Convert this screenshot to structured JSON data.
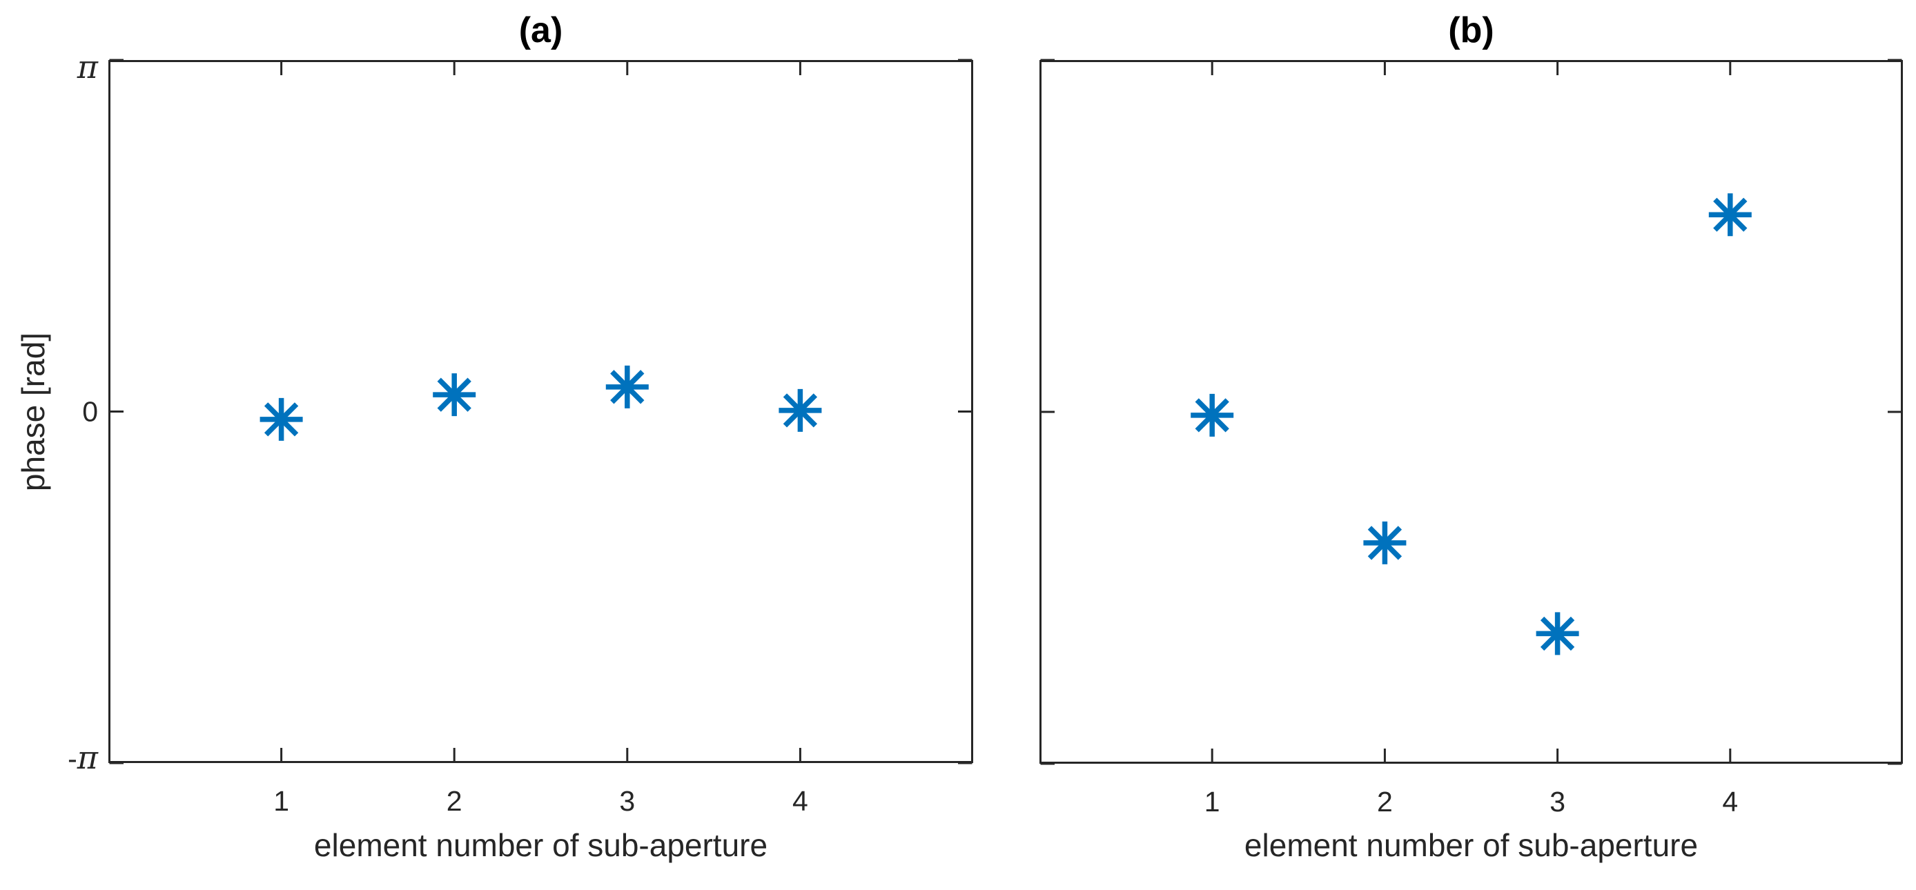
{
  "figure": {
    "background_color": "#ffffff",
    "axis_color": "#262626",
    "title_color": "#000000",
    "marker_color": "#0072BD",
    "marker_glyph": "asterisk"
  },
  "chart_data": [
    {
      "type": "scatter",
      "title": "(a)",
      "x": [
        1,
        2,
        3,
        4
      ],
      "y": [
        -0.07,
        0.15,
        0.22,
        0.01
      ],
      "xlabel": "element number of sub-aperture",
      "ylabel": "phase [rad]",
      "xlim": [
        0,
        5
      ],
      "ylim": [
        -3.14159265,
        3.14159265
      ],
      "xticks": [
        1,
        2,
        3,
        4
      ],
      "yticks": [
        3.14159265,
        0,
        -3.14159265
      ],
      "ytick_labels": [
        "π",
        "0",
        "-π"
      ],
      "show_ytick_labels": true,
      "marker": "*",
      "marker_color": "#0072BD",
      "grid": false,
      "legend": null
    },
    {
      "type": "scatter",
      "title": "(b)",
      "x": [
        1,
        2,
        3,
        4
      ],
      "y": [
        -0.03,
        -1.17,
        -1.98,
        1.76
      ],
      "xlabel": "element number of sub-aperture",
      "ylabel": "",
      "xlim": [
        0,
        5
      ],
      "ylim": [
        -3.14159265,
        3.14159265
      ],
      "xticks": [
        1,
        2,
        3,
        4
      ],
      "yticks": [
        3.14159265,
        0,
        -3.14159265
      ],
      "ytick_labels": [
        "π",
        "0",
        "-π"
      ],
      "show_ytick_labels": false,
      "marker": "*",
      "marker_color": "#0072BD",
      "grid": false,
      "legend": null
    }
  ]
}
